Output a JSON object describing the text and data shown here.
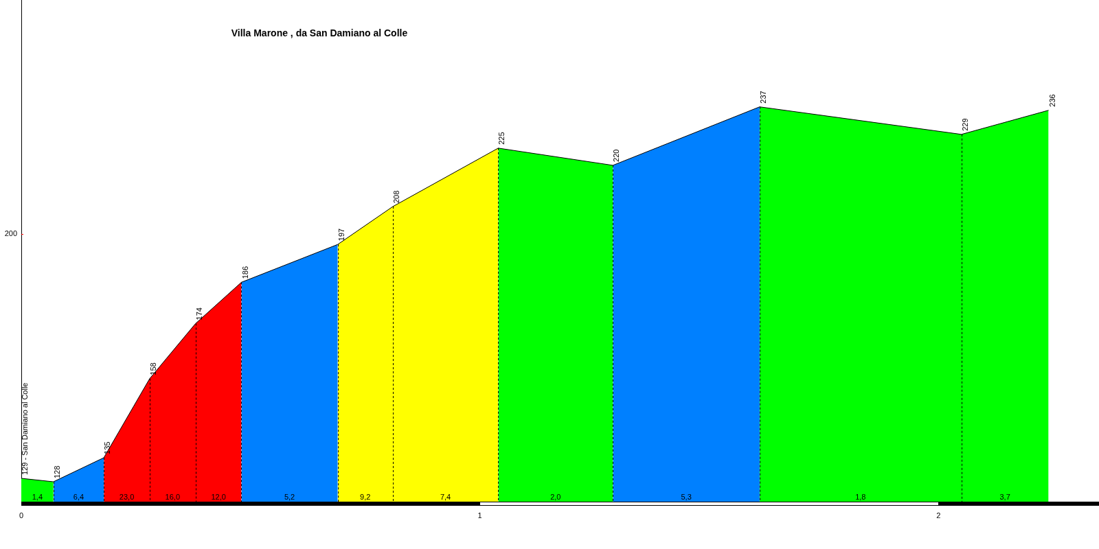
{
  "chart_data": {
    "type": "area",
    "title": "Villa Marone , da San Damiano al Colle",
    "series": [
      {
        "color": "#00ff00",
        "x": [
          0,
          0.07
        ],
        "values": [
          129,
          128
        ],
        "value_labels": [
          "129 - San Damiano al Colle",
          null
        ]
      },
      {
        "color": "#0080ff",
        "x": [
          0.07,
          0.18
        ],
        "values": [
          128,
          135
        ],
        "value_labels": [
          "128",
          null
        ]
      },
      {
        "color": "#ff0000",
        "x": [
          0.18,
          0.28,
          0.38,
          0.48
        ],
        "values": [
          135,
          158,
          174,
          186
        ],
        "value_labels": [
          "135",
          "158",
          "174",
          null
        ]
      },
      {
        "color": "#0080ff",
        "x": [
          0.48,
          0.69
        ],
        "values": [
          186,
          197
        ],
        "value_labels": [
          "186",
          null
        ]
      },
      {
        "color": "#ffff00",
        "x": [
          0.69,
          0.81,
          1.04
        ],
        "values": [
          197,
          208,
          225
        ],
        "value_labels": [
          "197",
          "208",
          null
        ]
      },
      {
        "color": "#00ff00",
        "x": [
          1.04,
          1.29
        ],
        "values": [
          225,
          220
        ],
        "value_labels": [
          "225",
          null
        ]
      },
      {
        "color": "#0080ff",
        "x": [
          1.29,
          1.61
        ],
        "values": [
          220,
          237
        ],
        "value_labels": [
          "220",
          null
        ]
      },
      {
        "color": "#00ff00",
        "x": [
          1.61,
          2.05,
          2.24
        ],
        "values": [
          237,
          229,
          236
        ],
        "value_labels": [
          "237",
          "229",
          "236"
        ]
      }
    ],
    "annotations": [
      "1,4",
      "6,4",
      "23,0",
      "16,0",
      "12,0",
      "5,2",
      "9,2",
      "7,4",
      "2,0",
      "5,3",
      "1,8",
      "3,7",
      "200"
    ],
    "xlim": [
      0,
      2.35
    ],
    "xticks": [
      0,
      1,
      2
    ],
    "marker": "none"
  }
}
